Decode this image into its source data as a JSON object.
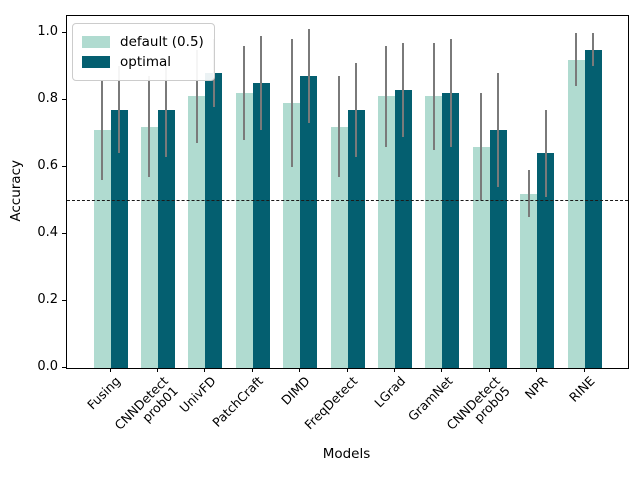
{
  "chart_data": {
    "type": "bar",
    "title": "",
    "xlabel": "Models",
    "ylabel": "Accuracy",
    "ylim": [
      0,
      1.05
    ],
    "yticks": [
      "0.0",
      "0.2",
      "0.4",
      "0.6",
      "0.8",
      "1.0"
    ],
    "ytick_values": [
      0.0,
      0.2,
      0.4,
      0.6,
      0.8,
      1.0
    ],
    "baseline": 0.5,
    "baseline_style": "dashed",
    "grid": false,
    "legend_position": "upper-left",
    "bar_orientation": "vertical",
    "error_bar_color": "#7a7a7a",
    "categories": [
      "Fusing",
      "CNNDetect\nprob01",
      "UnivFD",
      "PatchCraft",
      "DIMD",
      "FreqDetect",
      "LGrad",
      "GramNet",
      "CNNDetect\nprob05",
      "NPR",
      "RINE"
    ],
    "series": [
      {
        "name": "default (0.5)",
        "color": "#b0dbd0",
        "values": [
          0.71,
          0.72,
          0.81,
          0.82,
          0.79,
          0.72,
          0.81,
          0.81,
          0.66,
          0.52,
          0.92
        ],
        "errors": [
          0.15,
          0.15,
          0.14,
          0.14,
          0.19,
          0.15,
          0.15,
          0.16,
          0.16,
          0.07,
          0.08
        ]
      },
      {
        "name": "optimal",
        "color": "#045f70",
        "values": [
          0.77,
          0.77,
          0.88,
          0.85,
          0.87,
          0.77,
          0.83,
          0.82,
          0.71,
          0.64,
          0.95
        ],
        "errors": [
          0.13,
          0.14,
          0.1,
          0.14,
          0.14,
          0.14,
          0.14,
          0.16,
          0.17,
          0.13,
          0.05
        ]
      }
    ]
  }
}
